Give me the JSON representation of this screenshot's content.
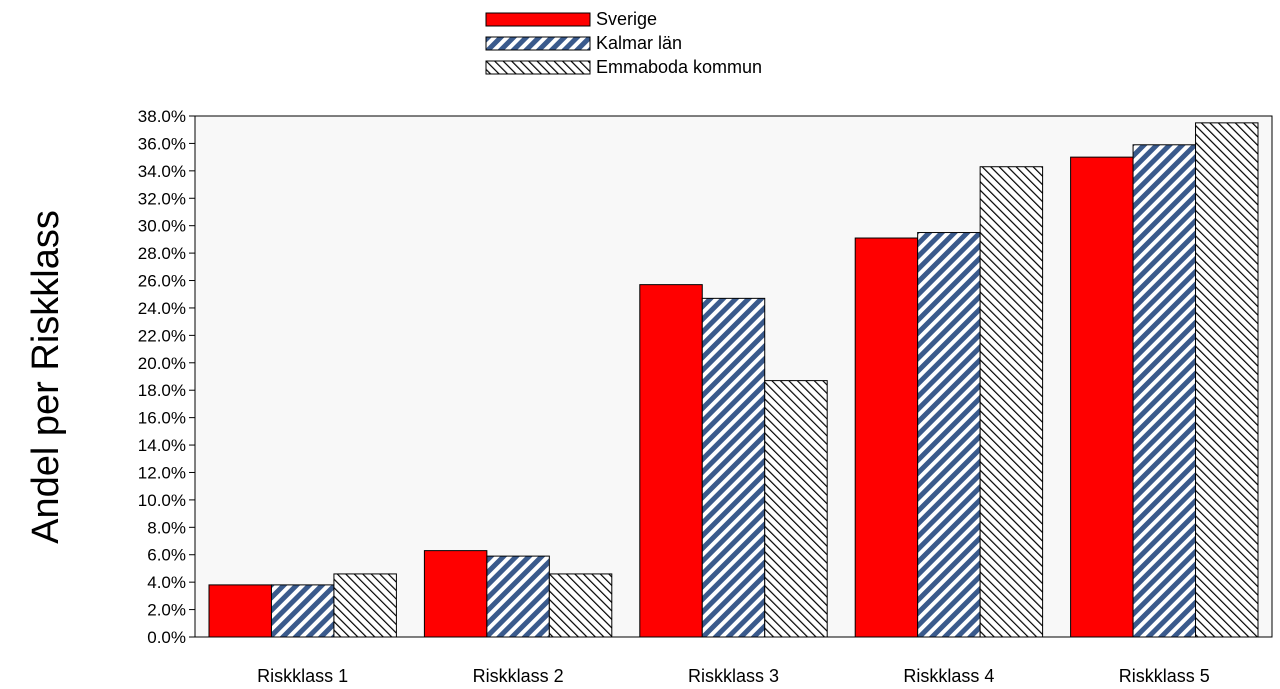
{
  "chart_data": {
    "type": "bar",
    "ylabel": "Andel per Riskklass",
    "xlabel": "",
    "ylim": [
      0,
      38
    ],
    "y_ticks": [
      "0.0%",
      "2.0%",
      "4.0%",
      "6.0%",
      "8.0%",
      "10.0%",
      "12.0%",
      "14.0%",
      "16.0%",
      "18.0%",
      "20.0%",
      "22.0%",
      "24.0%",
      "26.0%",
      "28.0%",
      "30.0%",
      "32.0%",
      "34.0%",
      "36.0%",
      "38.0%"
    ],
    "categories": [
      "Riskklass 1",
      "Riskklass 2",
      "Riskklass 3",
      "Riskklass 4",
      "Riskklass 5"
    ],
    "series": [
      {
        "name": "Sverige",
        "values": [
          3.8,
          6.3,
          25.7,
          29.1,
          35.0
        ],
        "color": "#ff0000",
        "pattern": "solid"
      },
      {
        "name": "Kalmar län",
        "values": [
          3.8,
          5.9,
          24.7,
          29.5,
          35.9
        ],
        "color": "#3a5a8c",
        "pattern": "dense-diagonal"
      },
      {
        "name": "Emmaboda kommun",
        "values": [
          4.6,
          4.6,
          18.7,
          34.3,
          37.5
        ],
        "color": "#000000",
        "pattern": "sparse-diagonal"
      }
    ],
    "grid": false,
    "legend": "top-center",
    "plot_background": "#f8f8f8"
  }
}
